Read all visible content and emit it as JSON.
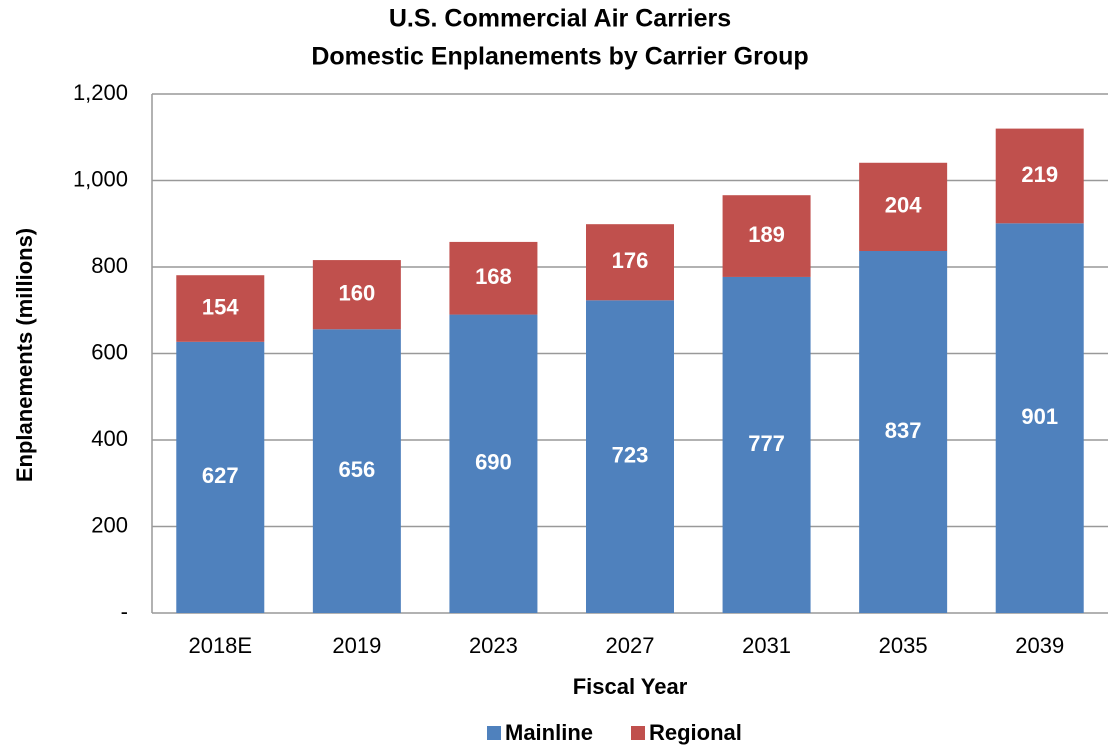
{
  "chart_data": {
    "type": "stacked_bar",
    "title": [
      "U.S. Commercial Air Carriers",
      "Domestic Enplanements by Carrier Group"
    ],
    "x_label": "Fiscal Year",
    "y_label": "Enplanements (millions)",
    "categories": [
      "2018E",
      "2019",
      "2023",
      "2027",
      "2031",
      "2035",
      "2039"
    ],
    "series": [
      {
        "name": "Mainline",
        "color": "#4f81bd",
        "values": [
          627,
          656,
          690,
          723,
          777,
          837,
          901
        ]
      },
      {
        "name": "Regional",
        "color": "#c0504d",
        "values": [
          154,
          160,
          168,
          176,
          189,
          204,
          219
        ]
      }
    ],
    "ylim": [
      0,
      1200
    ],
    "yticks": [
      {
        "value": 0,
        "label": "-"
      },
      200,
      400,
      600,
      800,
      {
        "value": 1000,
        "label": "1,000"
      },
      {
        "value": 1200,
        "label": "1,200"
      }
    ],
    "grid": true,
    "legend": "bottom"
  }
}
